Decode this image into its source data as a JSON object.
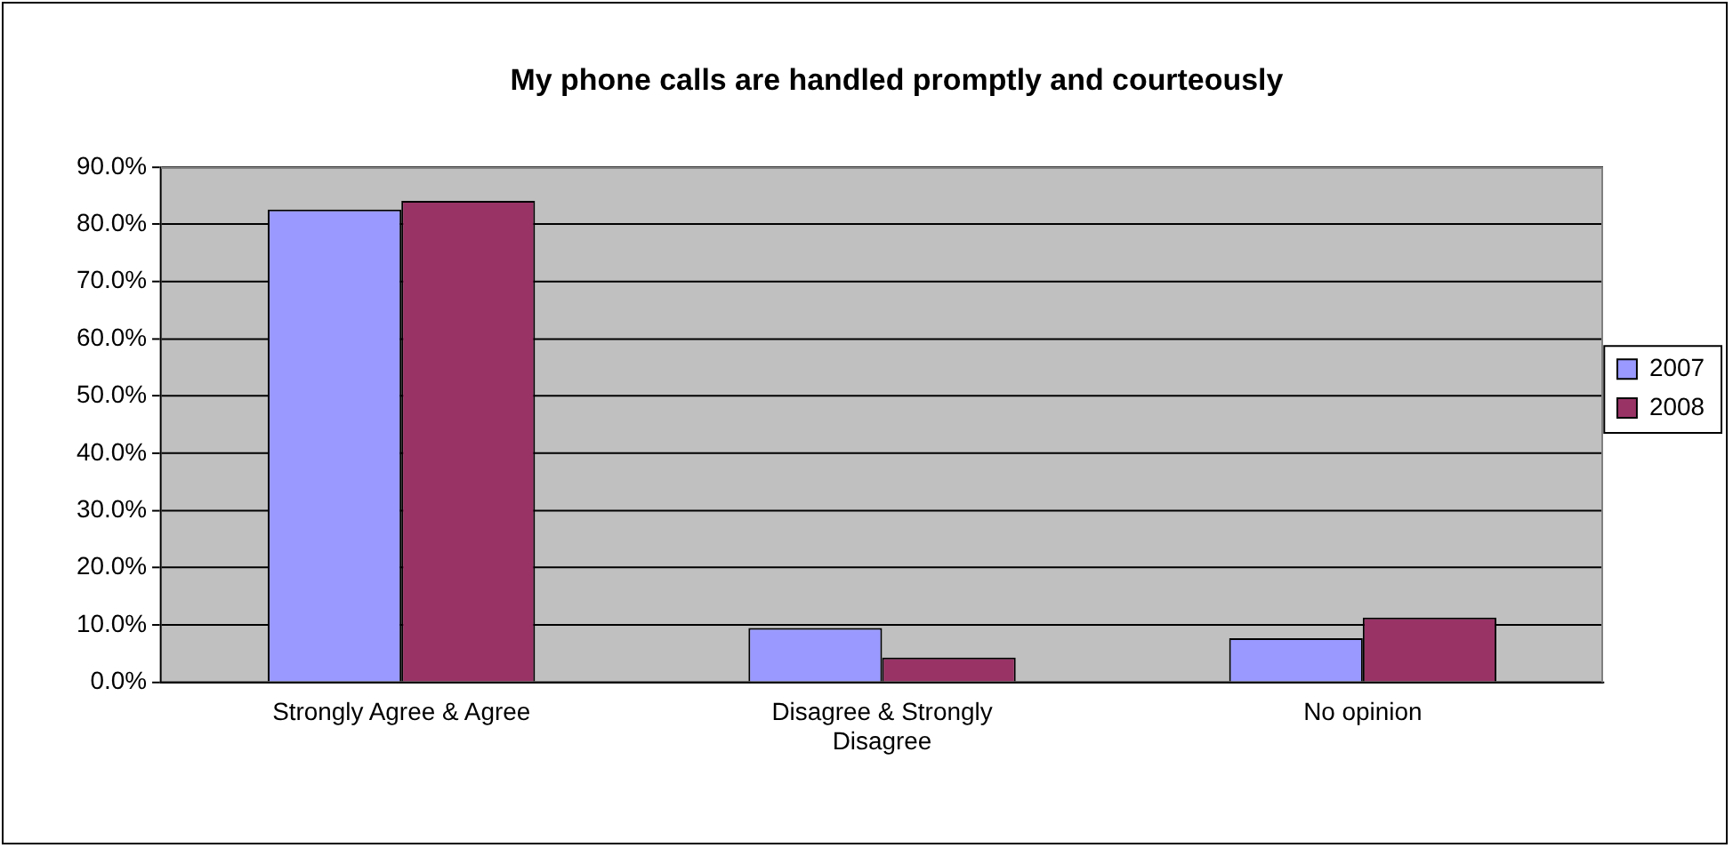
{
  "chart_data": {
    "type": "bar",
    "title": "My phone calls are handled promptly and courteously",
    "categories": [
      "Strongly Agree & Agree",
      "Disagree & Strongly Disagree",
      "No opinion"
    ],
    "series": [
      {
        "name": "2007",
        "color": "#9999ff",
        "values": [
          82.6,
          9.5,
          7.7
        ]
      },
      {
        "name": "2008",
        "color": "#993366",
        "values": [
          84.1,
          4.3,
          11.3
        ]
      }
    ],
    "ylim": [
      0,
      90
    ],
    "yticks": [
      {
        "value": 0,
        "label": "0.0%"
      },
      {
        "value": 10,
        "label": "10.0%"
      },
      {
        "value": 20,
        "label": "20.0%"
      },
      {
        "value": 30,
        "label": "30.0%"
      },
      {
        "value": 40,
        "label": "40.0%"
      },
      {
        "value": 50,
        "label": "50.0%"
      },
      {
        "value": 60,
        "label": "60.0%"
      },
      {
        "value": 70,
        "label": "70.0%"
      },
      {
        "value": 80,
        "label": "80.0%"
      },
      {
        "value": 90,
        "label": "90.0%"
      }
    ],
    "grid": "y",
    "legend": "right"
  }
}
